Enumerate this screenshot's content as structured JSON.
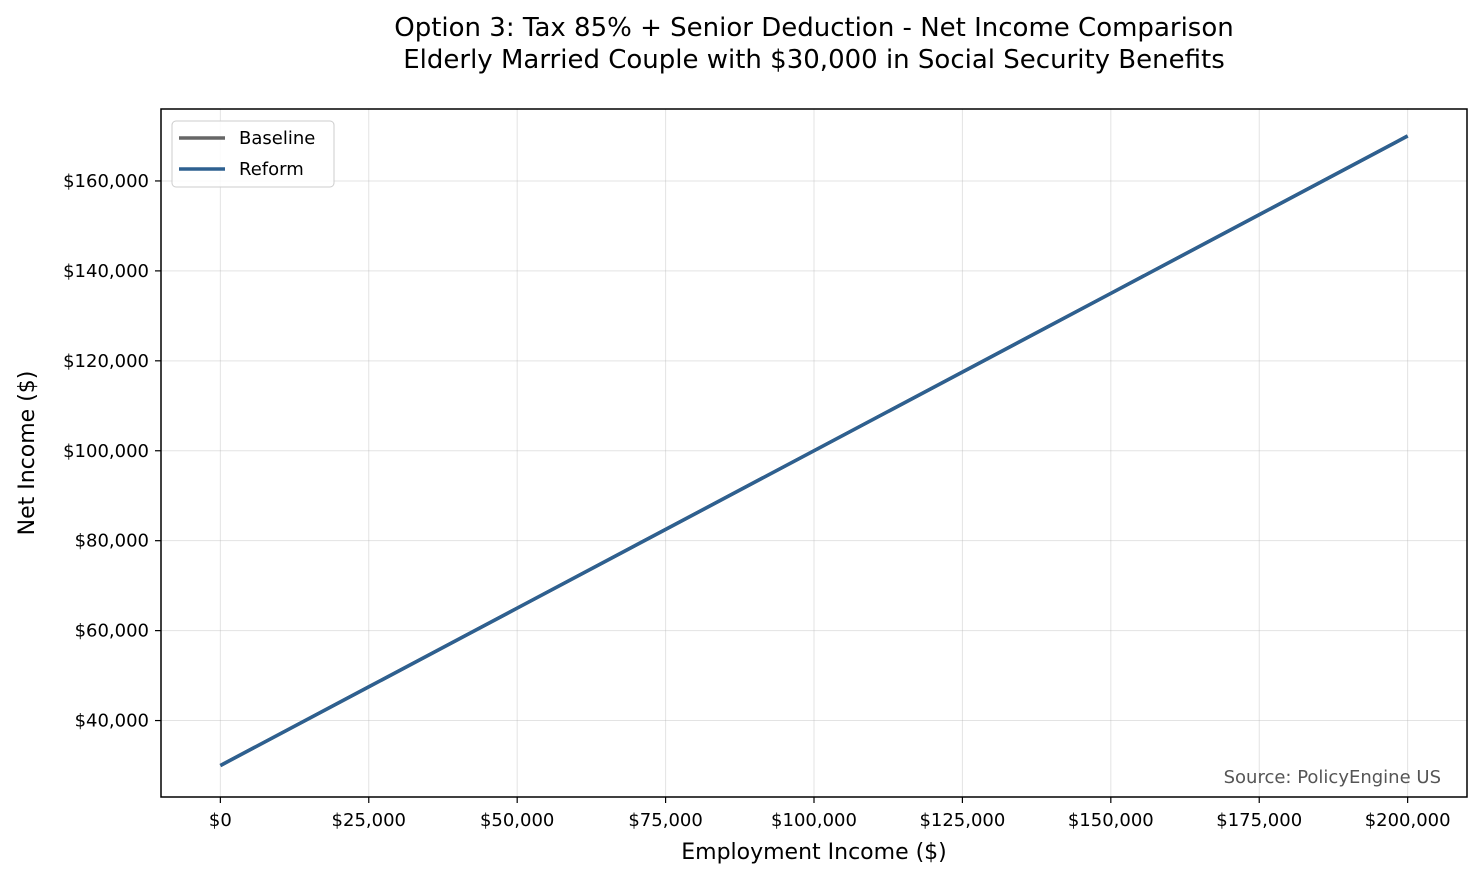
{
  "chart_data": {
    "type": "line",
    "title": "Option 3: Tax 85% + Senior Deduction - Net Income Comparison",
    "subtitle": "Elderly Married Couple with $30,000 in Social Security Benefits",
    "xlabel": "Employment Income ($)",
    "ylabel": "Net Income ($)",
    "xlim": [
      -10000,
      210000
    ],
    "ylim": [
      23000,
      176000
    ],
    "x_ticks": [
      0,
      25000,
      50000,
      75000,
      100000,
      125000,
      150000,
      175000,
      200000
    ],
    "x_tick_labels": [
      "$0",
      "$25,000",
      "$50,000",
      "$75,000",
      "$100,000",
      "$125,000",
      "$150,000",
      "$175,000",
      "$200,000"
    ],
    "y_ticks": [
      40000,
      60000,
      80000,
      100000,
      120000,
      140000,
      160000
    ],
    "y_tick_labels": [
      "$40,000",
      "$60,000",
      "$80,000",
      "$100,000",
      "$120,000",
      "$140,000",
      "$160,000"
    ],
    "grid": true,
    "legend_position": "top-left",
    "series": [
      {
        "name": "Baseline",
        "color": "#666666",
        "x": [
          0,
          25000,
          50000,
          75000,
          100000,
          125000,
          150000,
          175000,
          200000
        ],
        "y": [
          30000,
          47500,
          65000,
          82500,
          100000,
          117500,
          135000,
          152500,
          170000
        ]
      },
      {
        "name": "Reform",
        "color": "#2e6090",
        "x": [
          0,
          25000,
          50000,
          75000,
          100000,
          125000,
          150000,
          175000,
          200000
        ],
        "y": [
          30000,
          47500,
          65000,
          82500,
          100000,
          117500,
          135000,
          152500,
          170000
        ]
      }
    ],
    "annotation": "Source: PolicyEngine US"
  }
}
